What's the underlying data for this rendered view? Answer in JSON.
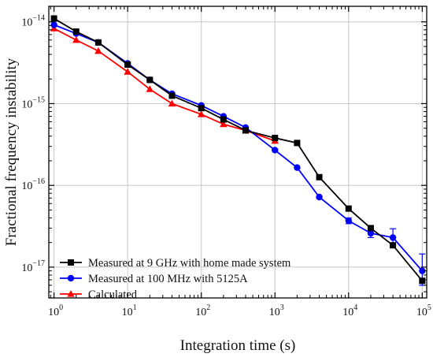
{
  "chart_data": {
    "type": "line",
    "xlabel": "Integration time (s)",
    "ylabel": "Fractional frequency instability",
    "xscale": "log",
    "yscale": "log",
    "xlim": [
      0.85,
      115000
    ],
    "ylim": [
      4.2e-18,
      1.55e-14
    ],
    "grid": true,
    "legend_position": "bottom-left",
    "x_tick_labels": [
      {
        "base": "10",
        "exp": "0",
        "value": 1
      },
      {
        "base": "10",
        "exp": "1",
        "value": 10
      },
      {
        "base": "10",
        "exp": "2",
        "value": 100
      },
      {
        "base": "10",
        "exp": "3",
        "value": 1000
      },
      {
        "base": "10",
        "exp": "4",
        "value": 10000
      },
      {
        "base": "10",
        "exp": "5",
        "value": 100000
      }
    ],
    "y_tick_labels": [
      {
        "base": "10",
        "exp": "−14",
        "value": 1e-14
      },
      {
        "base": "10",
        "exp": "−15",
        "value": 1e-15
      },
      {
        "base": "10",
        "exp": "−16",
        "value": 1e-16
      },
      {
        "base": "10",
        "exp": "−17",
        "value": 1e-17
      }
    ],
    "series": [
      {
        "name": "Measured at 9 GHz with home made system",
        "color": "#000000",
        "marker": "square",
        "x": [
          1,
          2,
          4,
          10,
          20,
          40,
          100,
          200,
          400,
          1000,
          2000,
          4000,
          10000,
          20000,
          40000,
          100000
        ],
        "y": [
          1.1e-14,
          7.6e-15,
          5.6e-15,
          3e-15,
          1.95e-15,
          1.25e-15,
          8.8e-16,
          6.4e-16,
          4.7e-16,
          3.8e-16,
          3.3e-16,
          1.26e-16,
          5.2e-17,
          3e-17,
          1.85e-17,
          6.8e-18
        ]
      },
      {
        "name": "Measured at 100 MHz with 5125A",
        "color": "#0000ff",
        "marker": "circle",
        "x": [
          1,
          2,
          4,
          10,
          20,
          40,
          100,
          200,
          400,
          1000,
          2000,
          4000,
          10000,
          20000,
          40000,
          100000
        ],
        "y": [
          9.2e-15,
          7.2e-15,
          5.6e-15,
          3.1e-15,
          1.95e-15,
          1.32e-15,
          9.5e-16,
          7e-16,
          5.1e-16,
          2.7e-16,
          1.65e-16,
          7.2e-17,
          3.7e-17,
          2.6e-17,
          2.3e-17,
          9e-18
        ],
        "error_upper": [
          0,
          0,
          0,
          0,
          0,
          0,
          0,
          0,
          0,
          0,
          0,
          0,
          3e-18,
          3.5e-18,
          6.5e-18,
          5.5e-18
        ],
        "error_lower": [
          0,
          0,
          0,
          0,
          0,
          0,
          0,
          0,
          0,
          0,
          0,
          0,
          3e-18,
          3e-18,
          4.5e-18,
          3e-18
        ]
      },
      {
        "name": "Calculated",
        "color": "#ff0000",
        "marker": "triangle",
        "x": [
          1,
          2,
          4,
          10,
          20,
          40,
          100,
          200,
          400,
          1000
        ],
        "y": [
          8.3e-15,
          6e-15,
          4.4e-15,
          2.45e-15,
          1.5e-15,
          1e-15,
          7.4e-16,
          5.6e-16,
          4.7e-16,
          3.5e-16
        ]
      }
    ]
  }
}
